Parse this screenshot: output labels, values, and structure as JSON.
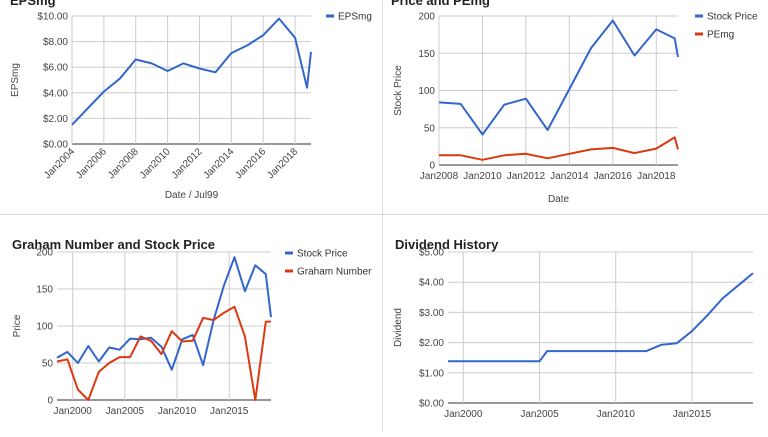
{
  "chart_data": [
    {
      "type": "line",
      "title": "EPSmg",
      "xlabel": "Date / Jul99",
      "ylabel": "EPSmg",
      "x_ticks": [
        "Jan2004",
        "Jan2006",
        "Jan2008",
        "Jan2010",
        "Jan2012",
        "Jan2014",
        "Jan2016",
        "Jan2018"
      ],
      "y_ticks": [
        "$0.00",
        "$2.00",
        "$4.00",
        "$6.00",
        "$8.00",
        "$10.00"
      ],
      "xlim": [
        2004,
        2019
      ],
      "ylim": [
        0,
        10
      ],
      "grid": true,
      "legend": "top-right",
      "series": [
        {
          "name": "EPSmg",
          "color": "#3366cc",
          "x": [
            2004,
            2005,
            2006,
            2007,
            2008,
            2009,
            2010,
            2011,
            2012,
            2013,
            2014,
            2015,
            2016,
            2017,
            2018,
            2018.75,
            2019
          ],
          "y": [
            1.5,
            2.8,
            4.1,
            5.1,
            6.6,
            6.3,
            5.7,
            6.3,
            5.9,
            5.6,
            7.1,
            7.7,
            8.5,
            9.8,
            8.3,
            4.4,
            7.2
          ]
        }
      ]
    },
    {
      "type": "line",
      "title": "Price and PEmg",
      "xlabel": "Date",
      "ylabel": "Stock Price",
      "x_ticks": [
        "Jan2008",
        "Jan2010",
        "Jan2012",
        "Jan2014",
        "Jan2016",
        "Jan2018"
      ],
      "y_ticks": [
        "0",
        "50",
        "100",
        "150",
        "200"
      ],
      "xlim": [
        2008,
        2019
      ],
      "ylim": [
        0,
        200
      ],
      "grid": true,
      "legend": "top-right",
      "series": [
        {
          "name": "Stock Price",
          "color": "#3366cc",
          "x": [
            2008,
            2009,
            2010,
            2011,
            2012,
            2013,
            2014,
            2015,
            2016,
            2017,
            2018,
            2018.85,
            2019
          ],
          "y": [
            84,
            82,
            41,
            81,
            89,
            47,
            102,
            157,
            194,
            147,
            182,
            170,
            145
          ]
        },
        {
          "name": "PEmg",
          "color": "#dc3912",
          "x": [
            2008,
            2009,
            2010,
            2011,
            2012,
            2013,
            2014,
            2015,
            2016,
            2017,
            2018,
            2018.85,
            2019
          ],
          "y": [
            13,
            13,
            7,
            13,
            15,
            9,
            15,
            21,
            23,
            16,
            22,
            37,
            21
          ]
        }
      ]
    },
    {
      "type": "line",
      "title": "Graham Number and Stock Price",
      "xlabel": "Date",
      "ylabel": "Price",
      "x_ticks": [
        "Jan2000",
        "Jan2005",
        "Jan2010",
        "Jan2015"
      ],
      "y_ticks": [
        "0",
        "50",
        "100",
        "150",
        "200"
      ],
      "xlim": [
        1998.5,
        2019
      ],
      "ylim": [
        0,
        200
      ],
      "grid": true,
      "legend": "top-right",
      "series": [
        {
          "name": "Stock Price",
          "color": "#3366cc",
          "x": [
            1998.5,
            1999.5,
            2000.5,
            2001.5,
            2002.5,
            2003.5,
            2004.5,
            2005.5,
            2006.5,
            2007.5,
            2008.5,
            2009.5,
            2010.5,
            2011.5,
            2012.5,
            2013.5,
            2014.5,
            2015.5,
            2016.5,
            2017.5,
            2018.5,
            2019
          ],
          "y": [
            57,
            65,
            50,
            73,
            52,
            71,
            68,
            83,
            82,
            84,
            72,
            41,
            82,
            88,
            47,
            108,
            155,
            193,
            147,
            182,
            170,
            112
          ]
        },
        {
          "name": "Graham Number",
          "color": "#dc3912",
          "x": [
            1998.5,
            1999.5,
            2000.5,
            2001.5,
            2002.5,
            2003.5,
            2004.5,
            2005.5,
            2006.5,
            2007.5,
            2008.5,
            2009.5,
            2010.5,
            2011.5,
            2012.5,
            2013.5,
            2014.5,
            2015.5,
            2016.5,
            2017.5,
            2018.5,
            2019
          ],
          "y": [
            52,
            55,
            14,
            0,
            38,
            50,
            58,
            58,
            86,
            80,
            62,
            93,
            79,
            80,
            111,
            108,
            118,
            126,
            86,
            0,
            106,
            106
          ]
        }
      ]
    },
    {
      "type": "line",
      "title": "Dividend History",
      "xlabel": "",
      "ylabel": "Dividend",
      "x_ticks": [
        "Jan2000",
        "Jan2005",
        "Jan2010",
        "Jan2015"
      ],
      "y_ticks": [
        "$0.00",
        "$1.00",
        "$2.00",
        "$3.00",
        "$4.00",
        "$5.00"
      ],
      "xlim": [
        1999,
        2019
      ],
      "ylim": [
        0,
        5
      ],
      "grid": true,
      "legend": "none",
      "series": [
        {
          "name": "",
          "color": "#3366cc",
          "x": [
            1999,
            2000,
            2001,
            2002,
            2003,
            2004,
            2005,
            2005.5,
            2006,
            2007,
            2008,
            2009,
            2010,
            2011,
            2012,
            2013,
            2014,
            2015,
            2016,
            2017,
            2018,
            2019
          ],
          "y": [
            1.38,
            1.38,
            1.38,
            1.38,
            1.38,
            1.38,
            1.38,
            1.72,
            1.72,
            1.72,
            1.72,
            1.72,
            1.72,
            1.72,
            1.72,
            1.93,
            1.98,
            2.38,
            2.9,
            3.46,
            3.88,
            4.3
          ]
        }
      ]
    }
  ]
}
